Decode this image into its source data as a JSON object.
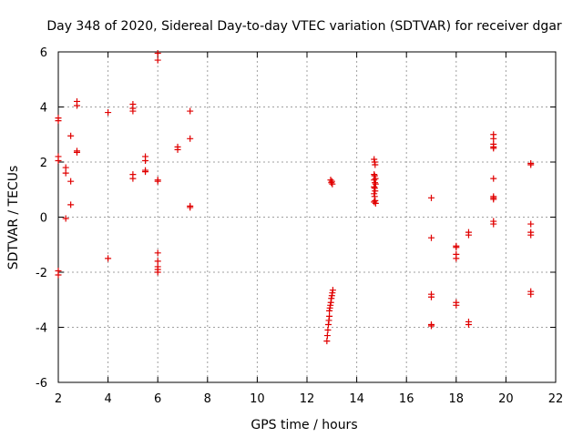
{
  "chart_data": {
    "type": "scatter",
    "title": "Day 348 of 2020, Sidereal Day-to-day VTEC variation (SDTVAR) for receiver dgar",
    "xlabel": "GPS time / hours",
    "ylabel": "SDTVAR / TECUs",
    "xlim": [
      2,
      22
    ],
    "ylim": [
      -6,
      6
    ],
    "xticks": [
      2,
      4,
      6,
      8,
      10,
      12,
      14,
      16,
      18,
      20,
      22
    ],
    "yticks": [
      -6,
      -4,
      -2,
      0,
      2,
      4,
      6
    ],
    "grid": true,
    "marker": "plus",
    "color": "#e00000",
    "series": [
      {
        "name": "SDTVAR",
        "points": [
          [
            2.0,
            3.6
          ],
          [
            2.0,
            3.5
          ],
          [
            2.0,
            2.2
          ],
          [
            2.0,
            2.05
          ],
          [
            2.0,
            -1.95
          ],
          [
            2.0,
            -2.1
          ],
          [
            2.3,
            1.8
          ],
          [
            2.3,
            1.6
          ],
          [
            2.3,
            -0.05
          ],
          [
            2.5,
            2.95
          ],
          [
            2.5,
            1.3
          ],
          [
            2.5,
            0.45
          ],
          [
            2.75,
            4.2
          ],
          [
            2.75,
            4.05
          ],
          [
            2.75,
            2.4
          ],
          [
            2.75,
            2.35
          ],
          [
            4.0,
            3.8
          ],
          [
            4.0,
            -1.5
          ],
          [
            5.0,
            4.1
          ],
          [
            5.0,
            3.95
          ],
          [
            5.0,
            3.85
          ],
          [
            5.0,
            1.55
          ],
          [
            5.0,
            1.4
          ],
          [
            5.5,
            2.2
          ],
          [
            5.5,
            2.05
          ],
          [
            5.5,
            1.7
          ],
          [
            5.5,
            1.65
          ],
          [
            6.0,
            5.95
          ],
          [
            6.0,
            5.7
          ],
          [
            6.0,
            1.35
          ],
          [
            6.0,
            1.3
          ],
          [
            6.0,
            -1.3
          ],
          [
            6.0,
            -1.6
          ],
          [
            6.0,
            -1.8
          ],
          [
            6.0,
            -1.9
          ],
          [
            6.0,
            -2.0
          ],
          [
            6.8,
            2.55
          ],
          [
            6.8,
            2.45
          ],
          [
            7.3,
            3.85
          ],
          [
            7.3,
            2.85
          ],
          [
            7.3,
            0.4
          ],
          [
            7.3,
            0.35
          ],
          [
            12.8,
            -4.5
          ],
          [
            12.82,
            -4.3
          ],
          [
            12.84,
            -4.1
          ],
          [
            12.86,
            -3.9
          ],
          [
            12.88,
            -3.75
          ],
          [
            12.9,
            -3.6
          ],
          [
            12.9,
            -3.4
          ],
          [
            12.92,
            -3.3
          ],
          [
            12.94,
            -3.2
          ],
          [
            12.96,
            -3.1
          ],
          [
            12.98,
            -2.95
          ],
          [
            13.0,
            -2.85
          ],
          [
            13.02,
            -2.75
          ],
          [
            13.04,
            -2.65
          ],
          [
            12.95,
            1.35
          ],
          [
            13.0,
            1.3
          ],
          [
            12.98,
            1.25
          ],
          [
            13.02,
            1.2
          ],
          [
            14.7,
            2.1
          ],
          [
            14.72,
            2.0
          ],
          [
            14.74,
            1.9
          ],
          [
            14.7,
            1.55
          ],
          [
            14.72,
            1.5
          ],
          [
            14.75,
            1.4
          ],
          [
            14.7,
            1.35
          ],
          [
            14.73,
            1.25
          ],
          [
            14.76,
            1.2
          ],
          [
            14.7,
            1.1
          ],
          [
            14.72,
            1.05
          ],
          [
            14.74,
            0.95
          ],
          [
            14.7,
            0.85
          ],
          [
            14.72,
            0.75
          ],
          [
            14.74,
            0.6
          ],
          [
            14.7,
            0.55
          ],
          [
            14.76,
            0.5
          ],
          [
            17.0,
            0.7
          ],
          [
            17.0,
            -0.75
          ],
          [
            17.0,
            -2.8
          ],
          [
            17.0,
            -2.9
          ],
          [
            17.0,
            -3.9
          ],
          [
            17.0,
            -3.95
          ],
          [
            18.0,
            -1.05
          ],
          [
            18.0,
            -1.1
          ],
          [
            18.0,
            -1.35
          ],
          [
            18.0,
            -1.5
          ],
          [
            18.0,
            -3.1
          ],
          [
            18.0,
            -3.2
          ],
          [
            18.5,
            -0.55
          ],
          [
            18.5,
            -0.65
          ],
          [
            18.5,
            -3.8
          ],
          [
            18.5,
            -3.9
          ],
          [
            19.5,
            3.0
          ],
          [
            19.5,
            2.85
          ],
          [
            19.5,
            2.65
          ],
          [
            19.5,
            2.55
          ],
          [
            19.5,
            2.5
          ],
          [
            19.5,
            1.4
          ],
          [
            19.5,
            0.75
          ],
          [
            19.5,
            0.65
          ],
          [
            19.5,
            0.7
          ],
          [
            19.5,
            -0.15
          ],
          [
            19.5,
            -0.25
          ],
          [
            21.0,
            1.95
          ],
          [
            21.0,
            1.9
          ],
          [
            21.0,
            -0.25
          ],
          [
            21.0,
            -0.55
          ],
          [
            21.0,
            -0.65
          ],
          [
            21.0,
            -2.7
          ],
          [
            21.0,
            -2.8
          ]
        ]
      }
    ]
  }
}
